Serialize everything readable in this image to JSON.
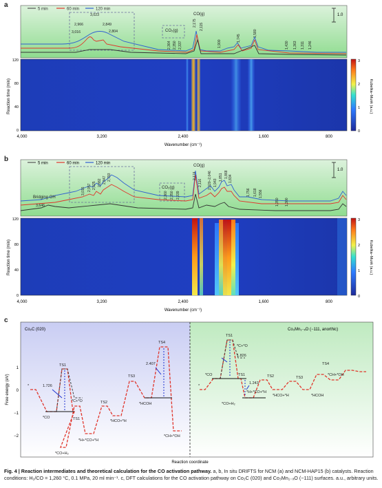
{
  "panel_a": {
    "label": "a",
    "legend": [
      "5 min",
      "60 min",
      "120 min"
    ],
    "legend_colors": [
      "#555555",
      "#e0342a",
      "#2f5fd0"
    ],
    "scale_label": "1.0",
    "peak_labels_inset": [
      "3,023",
      "2,966",
      "2,849",
      "3,016",
      "2,804"
    ],
    "peak_labels_main": [
      "2,175",
      "2,115",
      "2,364",
      "2,350",
      "2,337",
      "1,900",
      "1,745",
      "1,580",
      "1,430",
      "1,363",
      "1,311",
      "1,246"
    ],
    "co_label": "CO(g)",
    "co2_label": "CO₂(g)",
    "ylabel": "Reaction time (min)",
    "xlabel": "Wavenumber (cm⁻¹)",
    "colorbar_label": "Kubelka–Munk (a.u.)",
    "yticks": [
      "120",
      "80",
      "40",
      "0"
    ],
    "xticks": [
      "4,000",
      "3,200",
      "2,400",
      "1,600",
      "800"
    ],
    "cbar_ticks": [
      "3",
      "2",
      "1",
      "0"
    ]
  },
  "panel_b": {
    "label": "b",
    "legend": [
      "5 min",
      "60 min",
      "120 min"
    ],
    "legend_colors": [
      "#555555",
      "#e0342a",
      "#2f5fd0"
    ],
    "scale_label": "1.0",
    "bridging_label": "Bridging OH",
    "peak_labels_inset": [
      "3,016",
      "2,957",
      "2,925",
      "2,882",
      "2,847",
      "2,793"
    ],
    "peak_3646": "3,646",
    "peak_labels_main": [
      "2,174",
      "2,116",
      "2,020–2,046",
      "1,943",
      "1,851",
      "1,868",
      "1,834",
      "1,756",
      "1,618",
      "1,556",
      "1,350",
      "1,300"
    ],
    "co_label": "CO(g)",
    "co2_label": "CO₂(g)",
    "co2_peaks": [
      "2,360",
      "2,350",
      "2,339"
    ],
    "ylabel": "Reaction time (min)",
    "xlabel": "Wavenumber (cm⁻¹)",
    "colorbar_label": "Kubelka–Munk (a.u.)",
    "yticks": [
      "120",
      "80",
      "40",
      "0"
    ],
    "xticks": [
      "4,000",
      "3,200",
      "2,400",
      "1,600",
      "800"
    ],
    "cbar_ticks": [
      "3",
      "2",
      "1",
      "0"
    ]
  },
  "panel_c": {
    "label": "c",
    "left_title": "Co₂C (020)",
    "right_title": "Co₃Mn₁₋ₓO (−111, anorthic)",
    "ylabel": "Free energy (eV)",
    "xlabel": "Reaction coordinate",
    "yticks": [
      "1",
      "0",
      "−1",
      "−2"
    ],
    "left_labels": {
      "star": "*",
      "co": "*CO",
      "ts1a": "TS1",
      "c_o": "*C+*O",
      "barrier1": "1.726",
      "ts1b": "TS1",
      "co_h2": "*CO+H₂",
      "h_co_h": "*H+*CO+*H",
      "ts2": "TS2",
      "hco_h": "*HCO+*H",
      "ts3": "TS3",
      "hcoh": "*HCOH",
      "ts4": "TS4",
      "barrier2": "2.407",
      "ch_oh": "*CH+*OH"
    },
    "right_labels": {
      "star": "*",
      "co": "*CO",
      "ts1a": "TS1",
      "c_o": "*C+*O",
      "barrier1": "1.826",
      "ts1b": "TS1",
      "barrier2": "1.243",
      "co_h2": "*CO+H₂",
      "h_co_h": "*H+*CO+*H",
      "ts2": "TS2",
      "hco_h": "*HCO+*H",
      "ts3": "TS3",
      "hcoh": "*HCOH",
      "ts4": "TS4",
      "ch_oh": "*CH+*OH"
    }
  },
  "caption": {
    "fig": "Fig. 4 | Reaction intermediates and theoretical calculation for the CO activation pathway.",
    "text": " a, b, In situ DRIFTS for NCM (a) and NCM-HAP15 (b) catalysts. Reaction conditions: H₂/CO = 1,260 °C, 0.1 MPa, 20 ml min⁻¹. c, DFT calculations for the CO activation pathway on Co₂C (020) and Co₃Mn₁₋ₓO (−111) surfaces. a.u., arbitrary units."
  }
}
